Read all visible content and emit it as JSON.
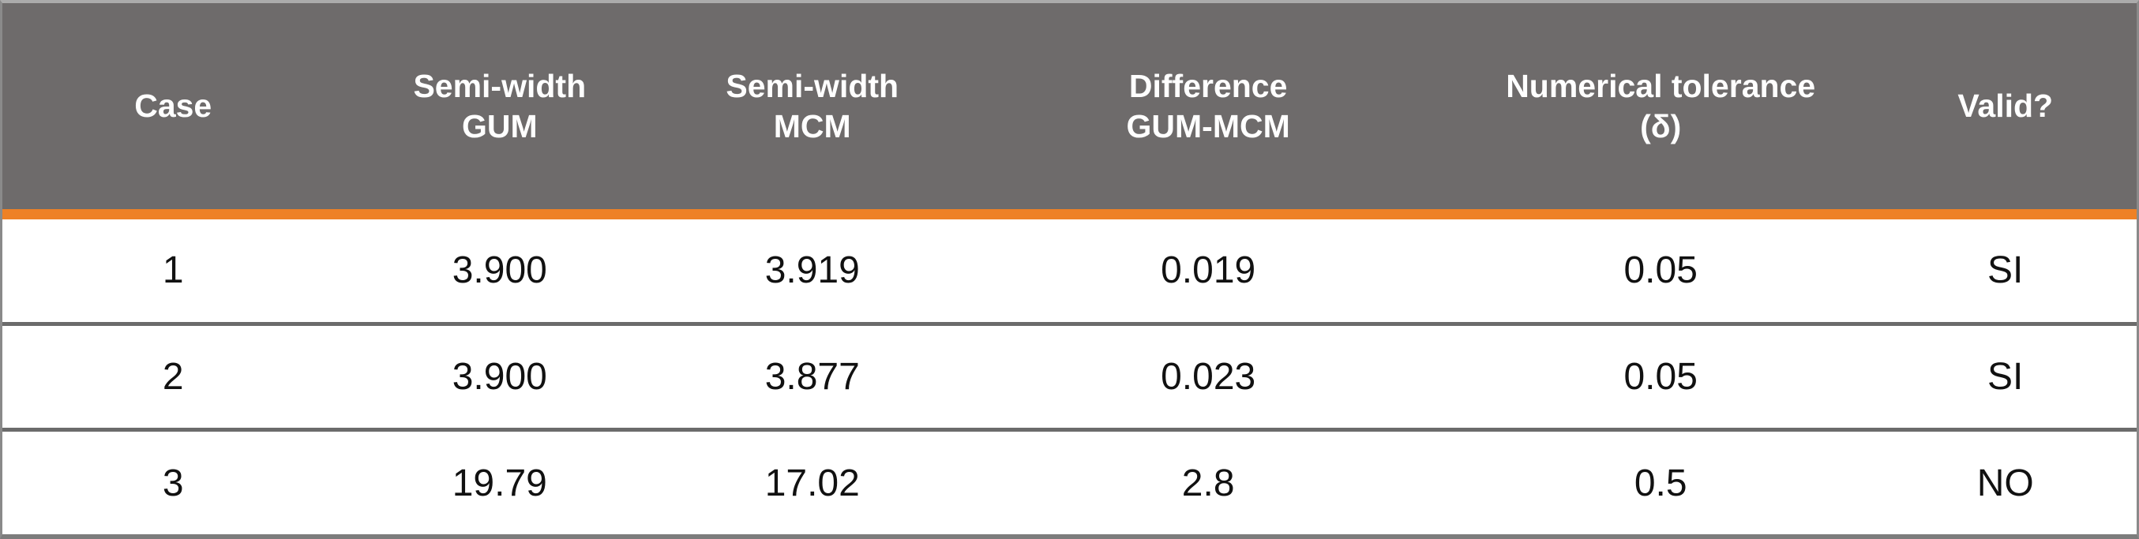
{
  "table": {
    "name": "gum-mcm-validation-table",
    "columns": [
      {
        "label": "Case"
      },
      {
        "label": "Semi-width\nGUM"
      },
      {
        "label": "Semi-width\nMCM"
      },
      {
        "label": "Difference\nGUM-MCM"
      },
      {
        "label": "Numerical tolerance\n(δ)"
      },
      {
        "label": "Valid?"
      }
    ],
    "rows": [
      {
        "cells": [
          "1",
          "3.900",
          "3.919",
          "0.019",
          "0.05",
          "SI"
        ]
      },
      {
        "cells": [
          "2",
          "3.900",
          "3.877",
          "0.023",
          "0.05",
          "SI"
        ]
      },
      {
        "cells": [
          "3",
          "19.79",
          "17.02",
          "2.8",
          "0.5",
          "NO"
        ]
      }
    ]
  },
  "colors": {
    "header_bg": "#6E6B6B",
    "header_text": "#FFFFFF",
    "accent_orange": "#EE8126",
    "row_divider": "#6B6B6B",
    "outer_border": "#8A8A8A",
    "top_border": "#ABABAB",
    "data_text": "#111111",
    "row_bg": "#FFFFFF"
  }
}
